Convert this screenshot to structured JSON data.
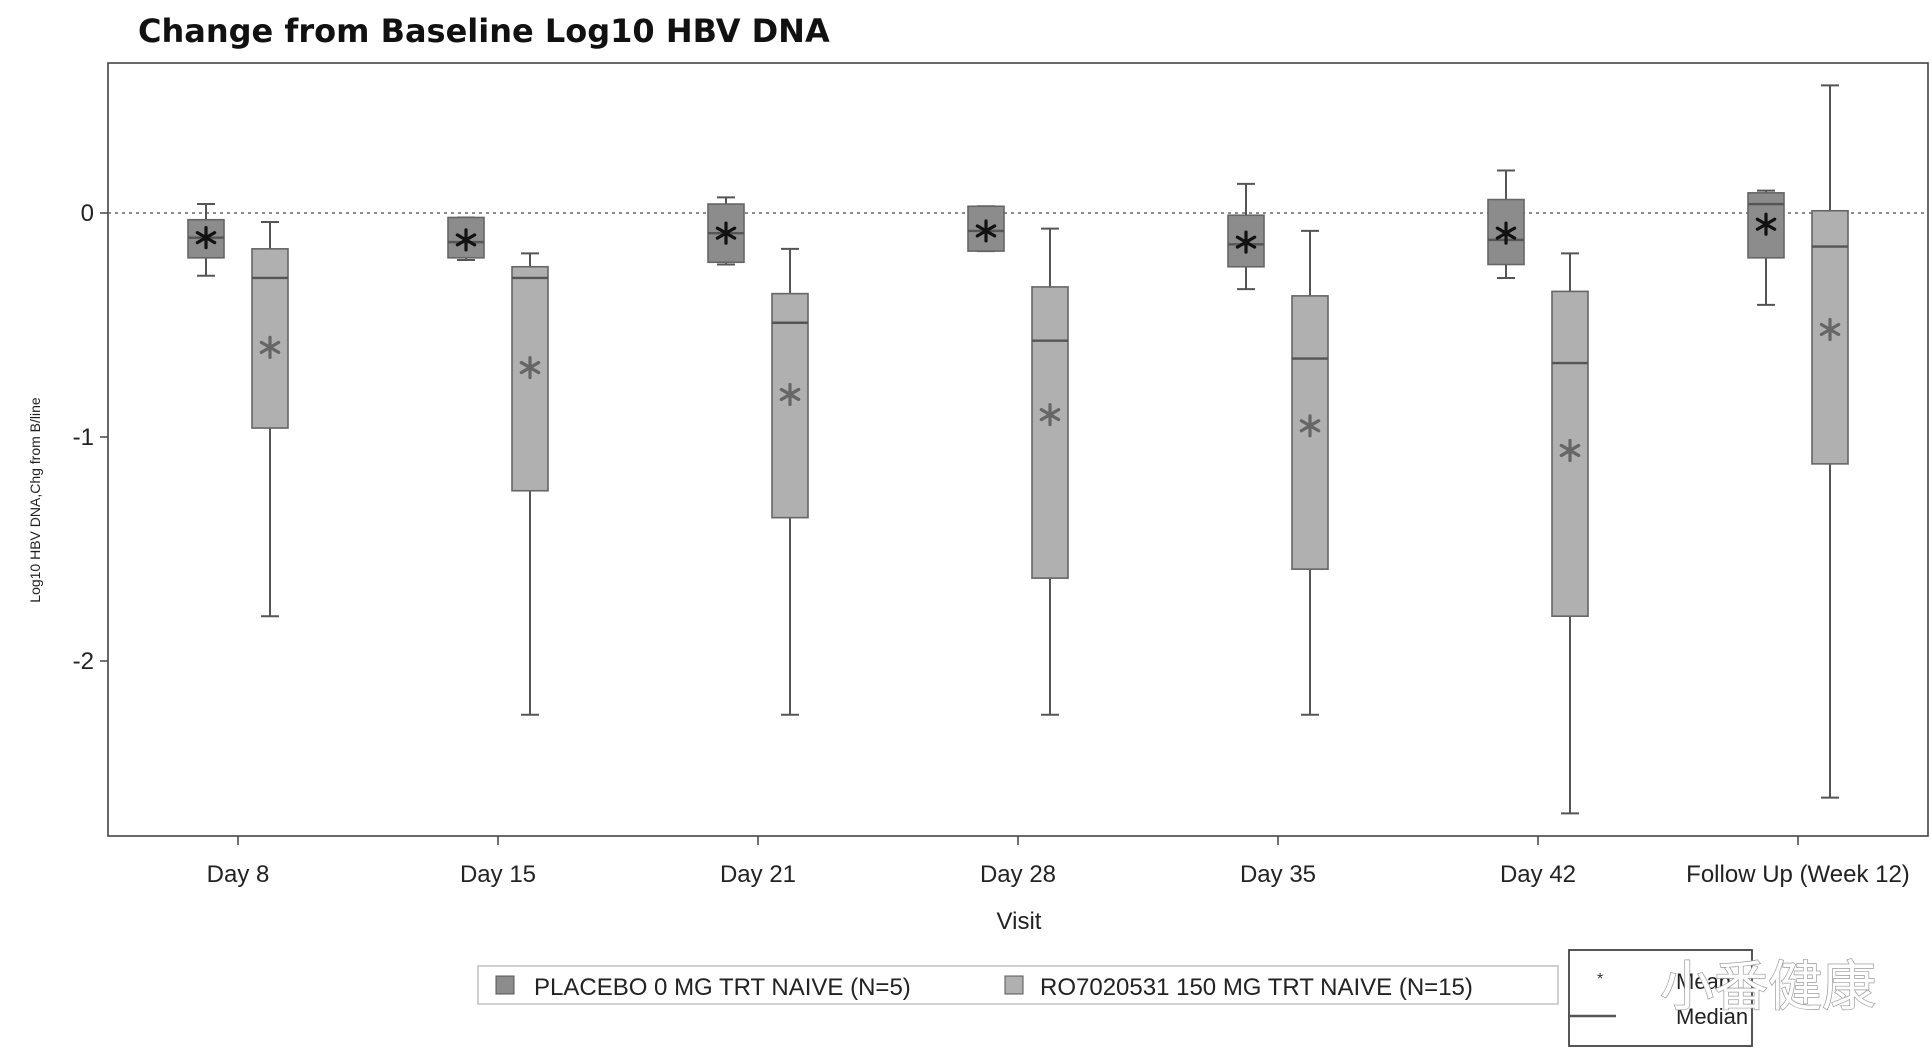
{
  "chart_data": {
    "type": "boxplot",
    "title": "Change from Baseline Log10 HBV DNA",
    "xlabel": "Visit",
    "ylabel": "Log10 HBV DNA,Chg from B/line",
    "ylim": [
      -2.75,
      0.65
    ],
    "yticks": [
      0,
      -1,
      -2
    ],
    "reference_line": 0,
    "categories": [
      "Day 8",
      "Day 15",
      "Day 21",
      "Day 28",
      "Day 35",
      "Day 42",
      "Follow Up (Week 12)"
    ],
    "series": [
      {
        "name": "PLACEBO 0 MG TRT NAIVE (N=5)",
        "color": "#8c8c8c",
        "boxes": [
          {
            "min": -0.28,
            "q1": -0.2,
            "median": -0.11,
            "q3": -0.03,
            "max": 0.04,
            "mean": -0.11
          },
          {
            "min": -0.21,
            "q1": -0.2,
            "median": -0.13,
            "q3": -0.02,
            "max": -0.02,
            "mean": -0.12
          },
          {
            "min": -0.23,
            "q1": -0.22,
            "median": -0.09,
            "q3": 0.04,
            "max": 0.07,
            "mean": -0.09
          },
          {
            "min": -0.17,
            "q1": -0.17,
            "median": -0.08,
            "q3": 0.03,
            "max": 0.03,
            "mean": -0.08
          },
          {
            "min": -0.34,
            "q1": -0.24,
            "median": -0.14,
            "q3": -0.01,
            "max": 0.13,
            "mean": -0.13
          },
          {
            "min": -0.29,
            "q1": -0.23,
            "median": -0.12,
            "q3": 0.06,
            "max": 0.19,
            "mean": -0.09
          },
          {
            "min": -0.41,
            "q1": -0.2,
            "median": 0.04,
            "q3": 0.09,
            "max": 0.1,
            "mean": -0.05
          }
        ]
      },
      {
        "name": "RO7020531 150 MG TRT NAIVE (N=15)",
        "color": "#b0b0b0",
        "boxes": [
          {
            "min": -1.8,
            "q1": -0.96,
            "median": -0.29,
            "q3": -0.16,
            "max": -0.04,
            "mean": -0.6
          },
          {
            "min": -2.24,
            "q1": -1.24,
            "median": -0.29,
            "q3": -0.24,
            "max": -0.18,
            "mean": -0.69
          },
          {
            "min": -2.24,
            "q1": -1.36,
            "median": -0.49,
            "q3": -0.36,
            "max": -0.16,
            "mean": -0.81
          },
          {
            "min": -2.24,
            "q1": -1.63,
            "median": -0.57,
            "q3": -0.33,
            "max": -0.07,
            "mean": -0.9
          },
          {
            "min": -2.24,
            "q1": -1.59,
            "median": -0.65,
            "q3": -0.37,
            "max": -0.08,
            "mean": -0.95
          },
          {
            "min": -2.68,
            "q1": -1.8,
            "median": -0.67,
            "q3": -0.35,
            "max": -0.18,
            "mean": -1.06
          },
          {
            "min": -2.61,
            "q1": -1.12,
            "median": -0.15,
            "q3": 0.01,
            "max": 0.57,
            "mean": -0.52
          }
        ]
      }
    ],
    "legend": {
      "placement": "bottom",
      "stats_labels": [
        "Mean",
        "Median"
      ]
    }
  },
  "watermark": "小番健康"
}
